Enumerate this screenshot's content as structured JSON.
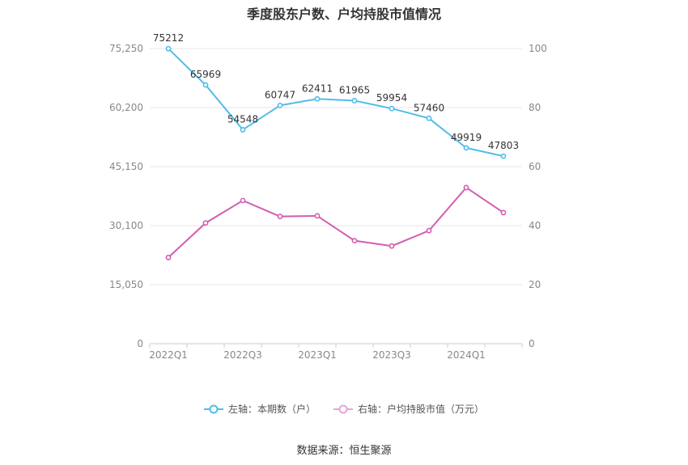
{
  "title": "季度股东户数、户均持股市值情况",
  "source": "数据来源：恒生聚源",
  "legend": [
    {
      "label": "左轴：本期数（户）",
      "color": "#4fbdea"
    },
    {
      "label": "右轴：户均持股市值（万元）",
      "color": "#e6a6d2"
    }
  ],
  "chart_data": {
    "type": "line",
    "categories": [
      "2022Q1",
      "2022Q2",
      "2022Q3",
      "2022Q4",
      "2023Q1",
      "2023Q2",
      "2023Q3",
      "2023Q4",
      "2024Q1",
      "2024Q2"
    ],
    "x_tick_labels": [
      "2022Q1",
      "",
      "2022Q3",
      "",
      "2023Q1",
      "",
      "2023Q3",
      "",
      "2024Q1",
      ""
    ],
    "y_left": {
      "range": [
        0,
        75250
      ],
      "ticks": [
        0,
        15050,
        30100,
        45150,
        60200,
        75250
      ],
      "tick_labels": [
        "0",
        "15,050",
        "30,100",
        "45,150",
        "60,200",
        "75,250"
      ]
    },
    "y_right": {
      "range": [
        0,
        100
      ],
      "ticks": [
        0,
        20,
        40,
        60,
        80,
        100
      ],
      "tick_labels": [
        "0",
        "20",
        "40",
        "60",
        "80",
        "100"
      ]
    },
    "grid": true,
    "legend_position": "bottom",
    "series": [
      {
        "name": "左轴：本期数（户）",
        "axis": "left",
        "color": "#4fbdea",
        "values": [
          75212,
          65969,
          54548,
          60747,
          62411,
          61965,
          59954,
          57460,
          49919,
          47803
        ],
        "data_labels": [
          "75212",
          "65969",
          "54548",
          "60747",
          "62411",
          "61965",
          "59954",
          "57460",
          "49919",
          "47803"
        ]
      },
      {
        "name": "右轴：户均持股市值（万元）",
        "axis": "right",
        "color": "#d45eb0",
        "values": [
          29.2,
          40.9,
          48.5,
          43.1,
          43.3,
          34.9,
          33.1,
          38.3,
          52.9,
          44.4
        ],
        "data_labels": []
      }
    ]
  }
}
